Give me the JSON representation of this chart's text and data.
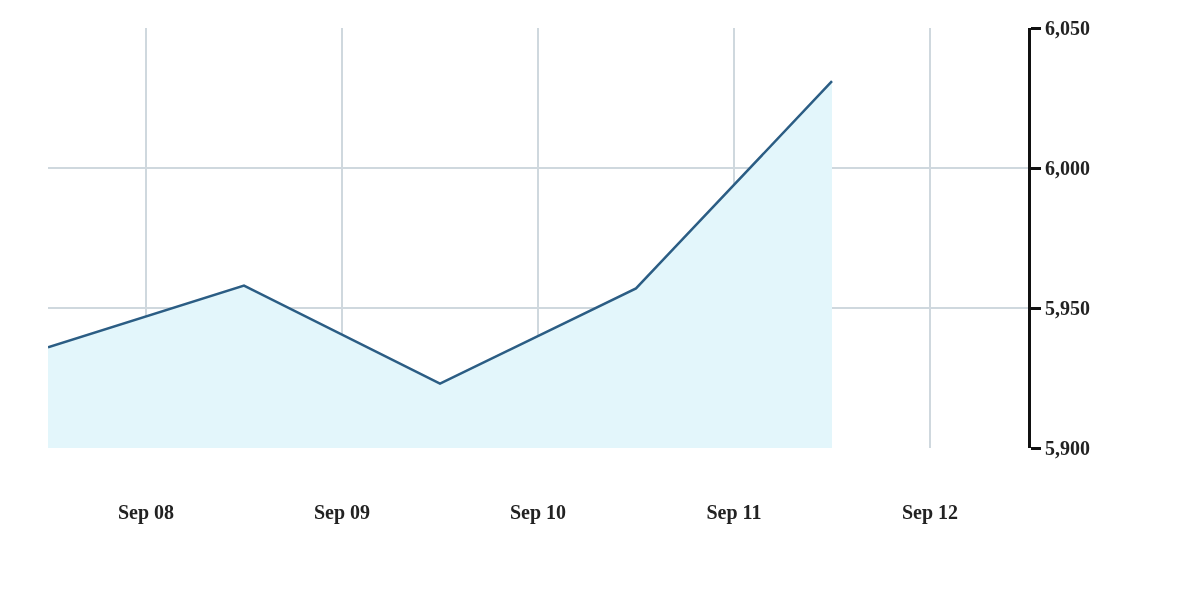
{
  "chart_data": {
    "type": "area",
    "x": [
      "--09-07T12:00",
      "--09-08T12:00",
      "--09-09T12:00",
      "--09-10T12:00",
      "--09-11T12:00"
    ],
    "series": [
      {
        "color": "#2b5d84",
        "values": [
          5936,
          5958,
          5923,
          5957,
          6031
        ]
      }
    ],
    "xlim": [
      "--09-07T12:00",
      "--09-12T12:00"
    ],
    "xticks": [
      {
        "value": "--09-08",
        "label": "Sep 08"
      },
      {
        "value": "--09-09",
        "label": "Sep 09"
      },
      {
        "value": "--09-10",
        "label": "Sep 10"
      },
      {
        "value": "--09-11",
        "label": "Sep 11"
      },
      {
        "value": "--09-12",
        "label": "Sep 12"
      }
    ],
    "ylim": [
      5900,
      6050
    ],
    "yticks": [
      {
        "value": 5900,
        "label": "5,900"
      },
      {
        "value": 5950,
        "label": "5,950"
      },
      {
        "value": 6000,
        "label": "6,000"
      },
      {
        "value": 6050,
        "label": "6,050"
      }
    ],
    "grid": true
  }
}
